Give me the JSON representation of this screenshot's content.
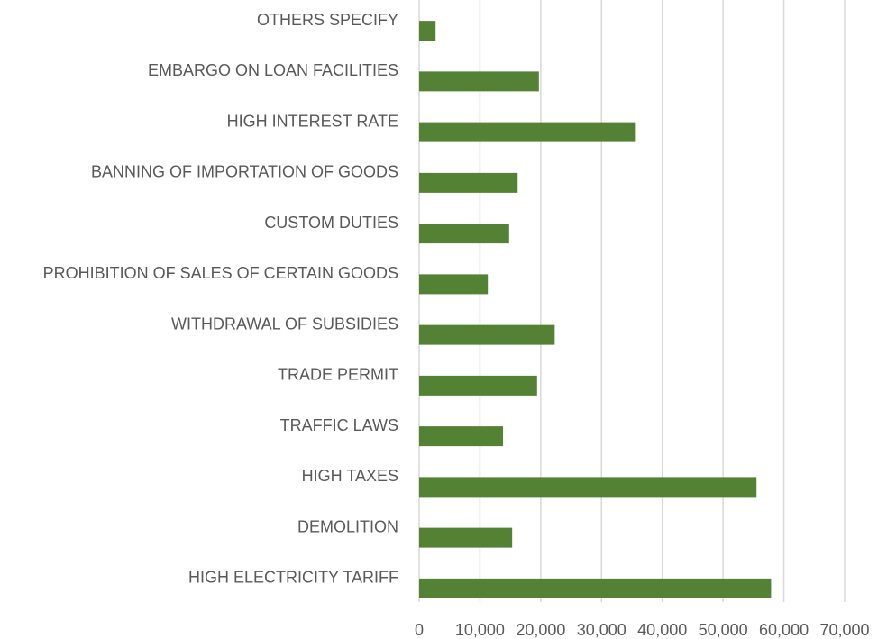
{
  "chart_data": {
    "type": "bar",
    "orientation": "horizontal",
    "categories": [
      "OTHERS SPECIFY",
      "EMBARGO ON LOAN FACILITIES",
      "HIGH INTEREST RATE",
      "BANNING OF IMPORTATION OF GOODS",
      "CUSTOM DUTIES",
      "PROHIBITION OF SALES OF CERTAIN GOODS",
      "WITHDRAWAL OF SUBSIDIES",
      "TRADE PERMIT",
      "TRAFFIC LAWS",
      "HIGH TAXES",
      "DEMOLITION",
      "HIGH ELECTRICITY TARIFF"
    ],
    "values": [
      2700,
      19700,
      35500,
      16200,
      14800,
      11300,
      22300,
      19400,
      13800,
      55500,
      15300,
      57900
    ],
    "color": "#548235",
    "xlim": [
      0,
      70000
    ],
    "xticks": [
      0,
      {
        "value": 10000,
        "label": "10,000"
      },
      {
        "value": 20000,
        "label": "20,000"
      },
      {
        "value": 30000,
        "label": "30,000"
      },
      {
        "value": 40000,
        "label": "40,000"
      },
      {
        "value": 50000,
        "label": "50,000"
      },
      {
        "value": 60000,
        "label": "60,000"
      },
      {
        "value": 70000,
        "label": "70,000"
      }
    ],
    "grid": true
  }
}
